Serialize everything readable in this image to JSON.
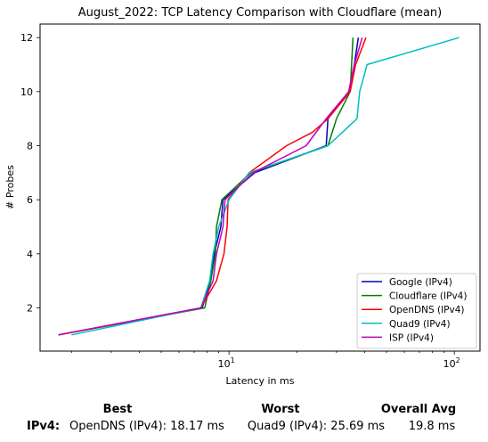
{
  "chart_data": {
    "type": "line",
    "title": "August_2022: TCP Latency Comparison with Cloudflare (mean)",
    "xlabel": "Latency in ms",
    "ylabel": "# Probes",
    "xscale": "log",
    "xlim": [
      1.45,
      130
    ],
    "ylim": [
      0.4,
      12.5
    ],
    "xticks": [
      {
        "value": 10,
        "label": "10^1"
      },
      {
        "value": 100,
        "label": "10^2"
      }
    ],
    "yticks": [
      2,
      4,
      6,
      8,
      10,
      12
    ],
    "grid": false,
    "legend_position": "lower-right",
    "series": [
      {
        "name": "Google (IPv4)",
        "color": "#0000bf",
        "points": [
          [
            1.75,
            1
          ],
          [
            7.6,
            2
          ],
          [
            8.3,
            3
          ],
          [
            8.6,
            4
          ],
          [
            9.2,
            5
          ],
          [
            9.4,
            6
          ],
          [
            13.0,
            7
          ],
          [
            27.0,
            8
          ],
          [
            27.5,
            9
          ],
          [
            34.0,
            10
          ],
          [
            36.0,
            11
          ],
          [
            37.5,
            12
          ]
        ]
      },
      {
        "name": "Cloudflare (IPv4)",
        "color": "#007f00",
        "points": [
          [
            1.75,
            1
          ],
          [
            7.8,
            2
          ],
          [
            8.3,
            3
          ],
          [
            8.7,
            4
          ],
          [
            8.8,
            5
          ],
          [
            9.3,
            6
          ],
          [
            12.5,
            7
          ],
          [
            27.5,
            8
          ],
          [
            30.0,
            9
          ],
          [
            34.5,
            10
          ],
          [
            35.0,
            11
          ],
          [
            35.5,
            12
          ]
        ]
      },
      {
        "name": "OpenDNS (IPv4)",
        "color": "#ff0000",
        "points": [
          [
            1.75,
            1
          ],
          [
            7.5,
            2
          ],
          [
            8.8,
            3
          ],
          [
            9.5,
            4
          ],
          [
            9.8,
            5
          ],
          [
            9.9,
            6
          ],
          [
            12.3,
            7
          ],
          [
            18.0,
            8
          ],
          [
            23.5,
            8.5
          ],
          [
            27.5,
            9
          ],
          [
            34.5,
            10
          ],
          [
            36.5,
            11
          ],
          [
            40.5,
            12
          ]
        ]
      },
      {
        "name": "Quad9 (IPv4)",
        "color": "#00bfbf",
        "points": [
          [
            2.0,
            1
          ],
          [
            7.5,
            2
          ],
          [
            8.2,
            3
          ],
          [
            8.5,
            4
          ],
          [
            9.0,
            5
          ],
          [
            10.0,
            6
          ],
          [
            12.3,
            7
          ],
          [
            27.5,
            8
          ],
          [
            37.0,
            9
          ],
          [
            38.0,
            10
          ],
          [
            41.0,
            11
          ],
          [
            105.0,
            12
          ]
        ]
      },
      {
        "name": "ISP (IPv4)",
        "color": "#bf00bf",
        "points": [
          [
            1.75,
            1
          ],
          [
            7.5,
            2
          ],
          [
            8.5,
            3
          ],
          [
            8.8,
            4
          ],
          [
            9.4,
            5
          ],
          [
            9.6,
            6
          ],
          [
            12.8,
            7
          ],
          [
            22.0,
            8
          ],
          [
            27.0,
            9
          ],
          [
            34.0,
            10
          ],
          [
            36.0,
            11
          ],
          [
            39.0,
            12
          ]
        ]
      }
    ]
  },
  "summary": {
    "headers": {
      "best": "Best",
      "worst": "Worst",
      "overall": "Overall Avg"
    },
    "row_label": "IPv4:",
    "best": "OpenDNS (IPv4): 18.17 ms",
    "worst": "Quad9 (IPv4): 25.69 ms",
    "overall": "19.8 ms"
  }
}
